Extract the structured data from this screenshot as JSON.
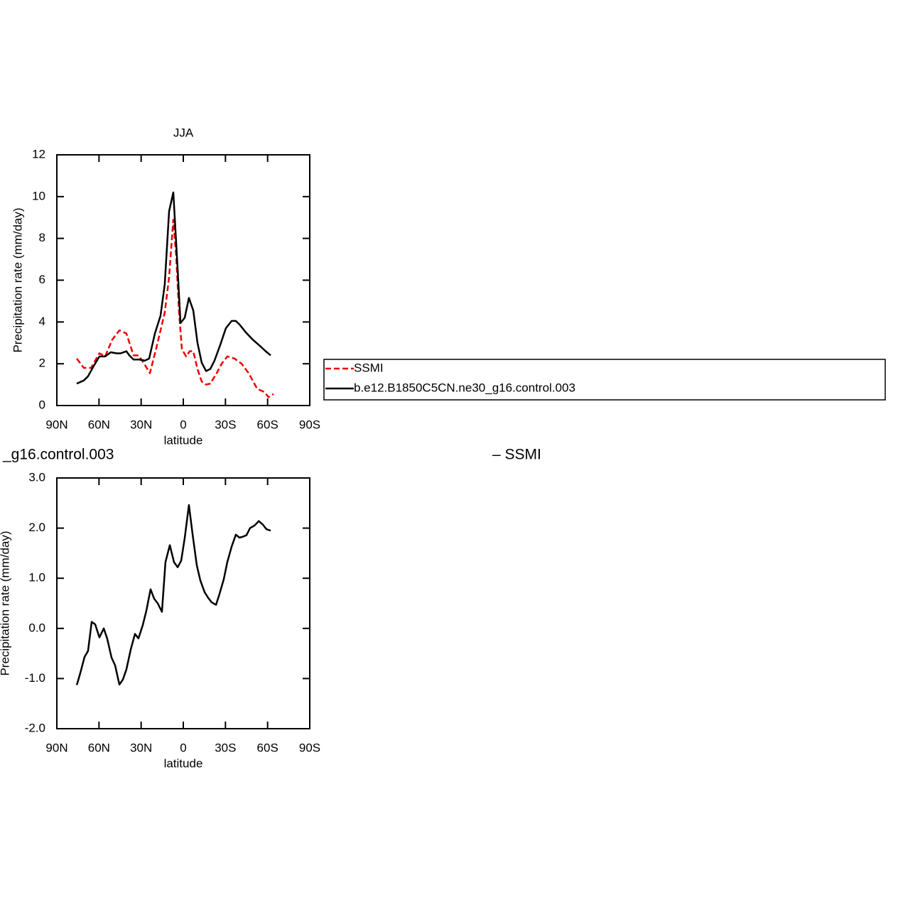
{
  "chart_data": [
    {
      "type": "line",
      "title": "JJA",
      "xlabel": "latitude",
      "ylabel": "Precipitation rate (mm/day)",
      "xlim": [
        90,
        -90
      ],
      "ylim": [
        0,
        12
      ],
      "xticks": [
        {
          "value": 90,
          "label": "90N"
        },
        {
          "value": 60,
          "label": "60N"
        },
        {
          "value": 30,
          "label": "30N"
        },
        0,
        {
          "value": -30,
          "label": "30S"
        },
        {
          "value": -60,
          "label": "60S"
        },
        {
          "value": -90,
          "label": "90S"
        }
      ],
      "yticks": [
        0,
        2,
        4,
        6,
        8,
        10,
        12
      ],
      "legend": "right",
      "series": [
        {
          "name": "SSMI",
          "color": "#ee0000",
          "dash": true,
          "x": [
            75.8,
            70.8,
            65.7,
            59.7,
            55.6,
            50.6,
            45.5,
            40.5,
            35.4,
            31.9,
            27.8,
            23.8,
            19.2,
            13.2,
            10.1,
            7.1,
            5.1,
            3.0,
            1.0,
            -2.0,
            -4.6,
            -7.1,
            -10.1,
            -13.1,
            -16.2,
            -19.2,
            -23.8,
            -27.3,
            -31.3,
            -36.4,
            -41.5,
            -46.5,
            -52.6,
            -57.6,
            -60.7,
            -64.2
          ],
          "values": [
            2.25,
            1.8,
            1.8,
            2.5,
            2.35,
            3.15,
            3.6,
            3.45,
            2.4,
            2.4,
            2.0,
            1.55,
            2.75,
            4.45,
            6.15,
            8.9,
            7.2,
            4.45,
            2.7,
            2.35,
            2.6,
            2.6,
            1.75,
            1.15,
            1.0,
            1.05,
            1.55,
            2.0,
            2.35,
            2.25,
            2.0,
            1.55,
            0.8,
            0.65,
            0.4,
            0.55
          ]
        },
        {
          "name": "b.e12.B1850C5CN.ne30_g16.control.003",
          "color": "#000000",
          "dash": false,
          "x": [
            75.8,
            70.8,
            67.8,
            63.7,
            59.7,
            55.6,
            51.6,
            47.5,
            44.5,
            40.5,
            38.4,
            35.4,
            31.4,
            27.3,
            24.3,
            20.2,
            16.2,
            13.2,
            10.1,
            7.1,
            4.0,
            2.0,
            -1.0,
            -4.0,
            -7.1,
            -10.1,
            -13.1,
            -16.2,
            -19.2,
            -22.2,
            -26.3,
            -30.3,
            -34.4,
            -37.4,
            -40.4,
            -44.5,
            -49.5,
            -54.6,
            -58.6,
            -62.2
          ],
          "values": [
            1.05,
            1.2,
            1.4,
            1.9,
            2.35,
            2.35,
            2.55,
            2.5,
            2.5,
            2.6,
            2.4,
            2.2,
            2.2,
            2.15,
            2.25,
            3.45,
            4.3,
            5.8,
            9.3,
            10.2,
            6.5,
            3.95,
            4.2,
            5.15,
            4.55,
            3.0,
            2.05,
            1.65,
            1.75,
            2.15,
            2.9,
            3.7,
            4.05,
            4.05,
            3.85,
            3.5,
            3.15,
            2.85,
            2.6,
            2.4
          ]
        }
      ]
    },
    {
      "type": "line",
      "title_left": "_g16.control.003",
      "title_right": "– SSMI",
      "xlabel": "latitude",
      "ylabel": "Precipitation rate (mm/day)",
      "xlim": [
        90,
        -90
      ],
      "ylim": [
        -2,
        3
      ],
      "xticks": [
        {
          "value": 90,
          "label": "90N"
        },
        {
          "value": 60,
          "label": "60N"
        },
        {
          "value": 30,
          "label": "30N"
        },
        0,
        {
          "value": -30,
          "label": "30S"
        },
        {
          "value": -60,
          "label": "60S"
        },
        {
          "value": -90,
          "label": "90S"
        }
      ],
      "yticks": [
        {
          "value": -2,
          "label": "-2.0"
        },
        {
          "value": -1,
          "label": "-1.0"
        },
        {
          "value": 0,
          "label": "0.0"
        },
        {
          "value": 1,
          "label": "1.0"
        },
        {
          "value": 2,
          "label": "2.0"
        },
        {
          "value": 3,
          "label": "3.0"
        }
      ],
      "series": [
        {
          "color": "#000000",
          "dash": false,
          "x": [
            75.8,
            73.3,
            70.3,
            67.8,
            65.2,
            62.7,
            59.7,
            56.6,
            54.1,
            51.1,
            48.5,
            45.5,
            43.0,
            40.5,
            37.4,
            34.4,
            31.9,
            28.8,
            26.3,
            23.3,
            20.7,
            18.2,
            15.2,
            12.7,
            9.6,
            6.6,
            4.0,
            1.5,
            -1.0,
            -4.0,
            -6.6,
            -9.6,
            -12.1,
            -15.2,
            -17.7,
            -20.2,
            -23.3,
            -25.8,
            -28.8,
            -31.3,
            -34.4,
            -37.4,
            -40.0,
            -42.5,
            -45.0,
            -47.5,
            -50.6,
            -53.7,
            -56.6,
            -59.1,
            -62.2
          ],
          "values": [
            -1.13,
            -0.89,
            -0.57,
            -0.45,
            0.13,
            0.08,
            -0.18,
            0.0,
            -0.21,
            -0.58,
            -0.74,
            -1.12,
            -1.02,
            -0.82,
            -0.42,
            -0.11,
            -0.2,
            0.07,
            0.35,
            0.78,
            0.59,
            0.5,
            0.33,
            1.32,
            1.66,
            1.32,
            1.22,
            1.35,
            1.8,
            2.46,
            1.88,
            1.26,
            0.96,
            0.72,
            0.61,
            0.52,
            0.47,
            0.69,
            0.98,
            1.32,
            1.63,
            1.87,
            1.81,
            1.83,
            1.86,
            2.0,
            2.05,
            2.14,
            2.07,
            1.98,
            1.95
          ]
        }
      ]
    }
  ]
}
